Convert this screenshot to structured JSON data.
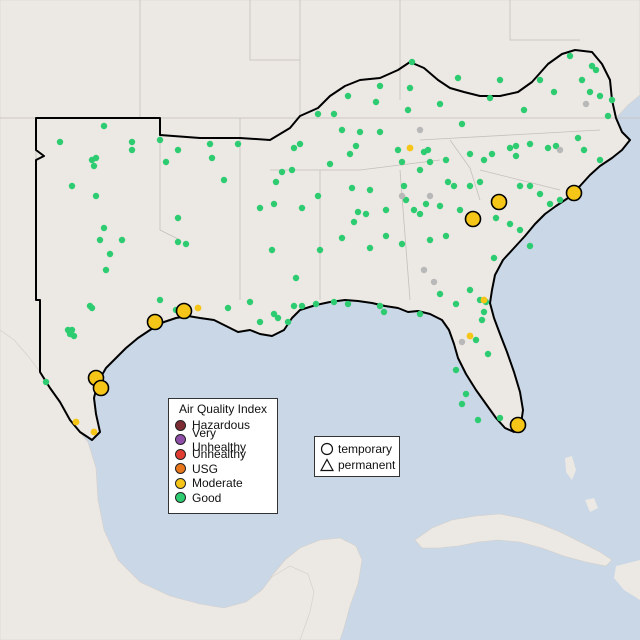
{
  "legend": {
    "title": "Air Quality Index",
    "categories": [
      {
        "label": "Hazardous",
        "color": "#7e2c33"
      },
      {
        "label": "Very Unhealthy",
        "color": "#8f4fa8"
      },
      {
        "label": "Unhealthy",
        "color": "#e03c31"
      },
      {
        "label": "USG",
        "color": "#e8761b"
      },
      {
        "label": "Moderate",
        "color": "#f5c518"
      },
      {
        "label": "Good",
        "color": "#2ecc71"
      }
    ]
  },
  "monitor_types": [
    {
      "label": "temporary",
      "shape": "circle"
    },
    {
      "label": "permanent",
      "shape": "triangle"
    }
  ],
  "colors": {
    "water": "#c9d7e6",
    "land": "#ece8e4",
    "region_outline": "#000000",
    "no_data": "#b8b8b8"
  }
}
